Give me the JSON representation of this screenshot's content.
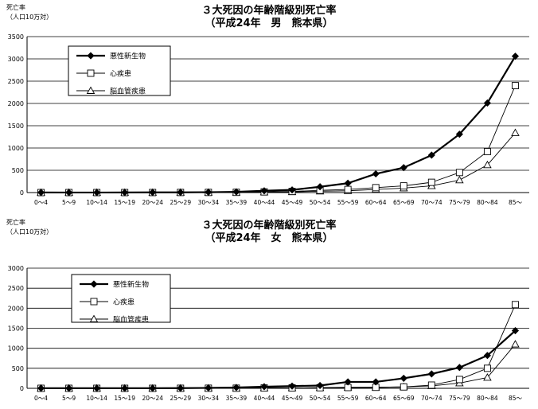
{
  "charts": [
    {
      "title_line1": "３大死因の年齢階級別死亡率",
      "title_line2": "（平成24年　男　熊本県）",
      "ylabel_line1": "死亡率",
      "ylabel_line2": "（人口10万対）"
    },
    {
      "title_line1": "３大死因の年齢階級別死亡率",
      "title_line2": "（平成24年　女　熊本県）",
      "ylabel_line1": "死亡率",
      "ylabel_line2": "（人口10万対）"
    }
  ],
  "chart_data": [
    {
      "type": "line",
      "title": "３大死因の年齢階級別死亡率（平成24年　男　熊本県）",
      "ylabel": "死亡率（人口10万対）",
      "ylim": [
        0,
        3500
      ],
      "yticks": [
        0,
        500,
        1000,
        1500,
        2000,
        2500,
        3000,
        3500
      ],
      "grid": true,
      "legend_position": "top-left",
      "categories": [
        "0～4",
        "5～9",
        "10～14",
        "15～19",
        "20～24",
        "25～29",
        "30～34",
        "35～39",
        "40～44",
        "45～49",
        "50～54",
        "55～59",
        "60～64",
        "65～69",
        "70～74",
        "75～79",
        "80～84",
        "85～"
      ],
      "series": [
        {
          "name": "悪性新生物",
          "marker": "diamond-filled",
          "color": "#000000",
          "values": [
            2,
            1,
            1,
            2,
            4,
            5,
            8,
            15,
            40,
            60,
            130,
            210,
            420,
            560,
            840,
            1310,
            2010,
            3060
          ]
        },
        {
          "name": "心疾患",
          "marker": "square-open",
          "color": "#000000",
          "values": [
            0,
            0,
            0,
            0,
            1,
            2,
            3,
            5,
            15,
            25,
            50,
            70,
            110,
            150,
            230,
            450,
            920,
            2400
          ]
        },
        {
          "name": "脳血管疾患",
          "marker": "triangle-open",
          "color": "#000000",
          "values": [
            0,
            0,
            0,
            0,
            0,
            1,
            2,
            3,
            10,
            15,
            30,
            40,
            70,
            100,
            150,
            280,
            620,
            1340
          ]
        }
      ]
    },
    {
      "type": "line",
      "title": "３大死因の年齢階級別死亡率（平成24年　女　熊本県）",
      "ylabel": "死亡率（人口10万対）",
      "ylim": [
        0,
        3000
      ],
      "yticks": [
        0,
        500,
        1000,
        1500,
        2000,
        2500,
        3000
      ],
      "grid": true,
      "legend_position": "top-left",
      "categories": [
        "0～4",
        "5～9",
        "10～14",
        "15～19",
        "20～24",
        "25～29",
        "30～34",
        "35～39",
        "40～44",
        "45～49",
        "50～54",
        "55～59",
        "60～64",
        "65～69",
        "70～74",
        "75～79",
        "80～84",
        "85～"
      ],
      "series": [
        {
          "name": "悪性新生物",
          "marker": "diamond-filled",
          "color": "#000000",
          "values": [
            2,
            2,
            2,
            2,
            3,
            5,
            10,
            20,
            40,
            55,
            70,
            160,
            160,
            250,
            360,
            520,
            820,
            1440
          ]
        },
        {
          "name": "心疾患",
          "marker": "square-open",
          "color": "#000000",
          "values": [
            0,
            0,
            0,
            0,
            0,
            1,
            2,
            3,
            8,
            10,
            15,
            20,
            25,
            35,
            80,
            220,
            500,
            2090
          ]
        },
        {
          "name": "脳血管疾患",
          "marker": "triangle-open",
          "color": "#000000",
          "values": [
            0,
            0,
            0,
            0,
            0,
            1,
            2,
            3,
            8,
            10,
            15,
            25,
            25,
            35,
            60,
            130,
            270,
            1100
          ]
        }
      ]
    }
  ]
}
